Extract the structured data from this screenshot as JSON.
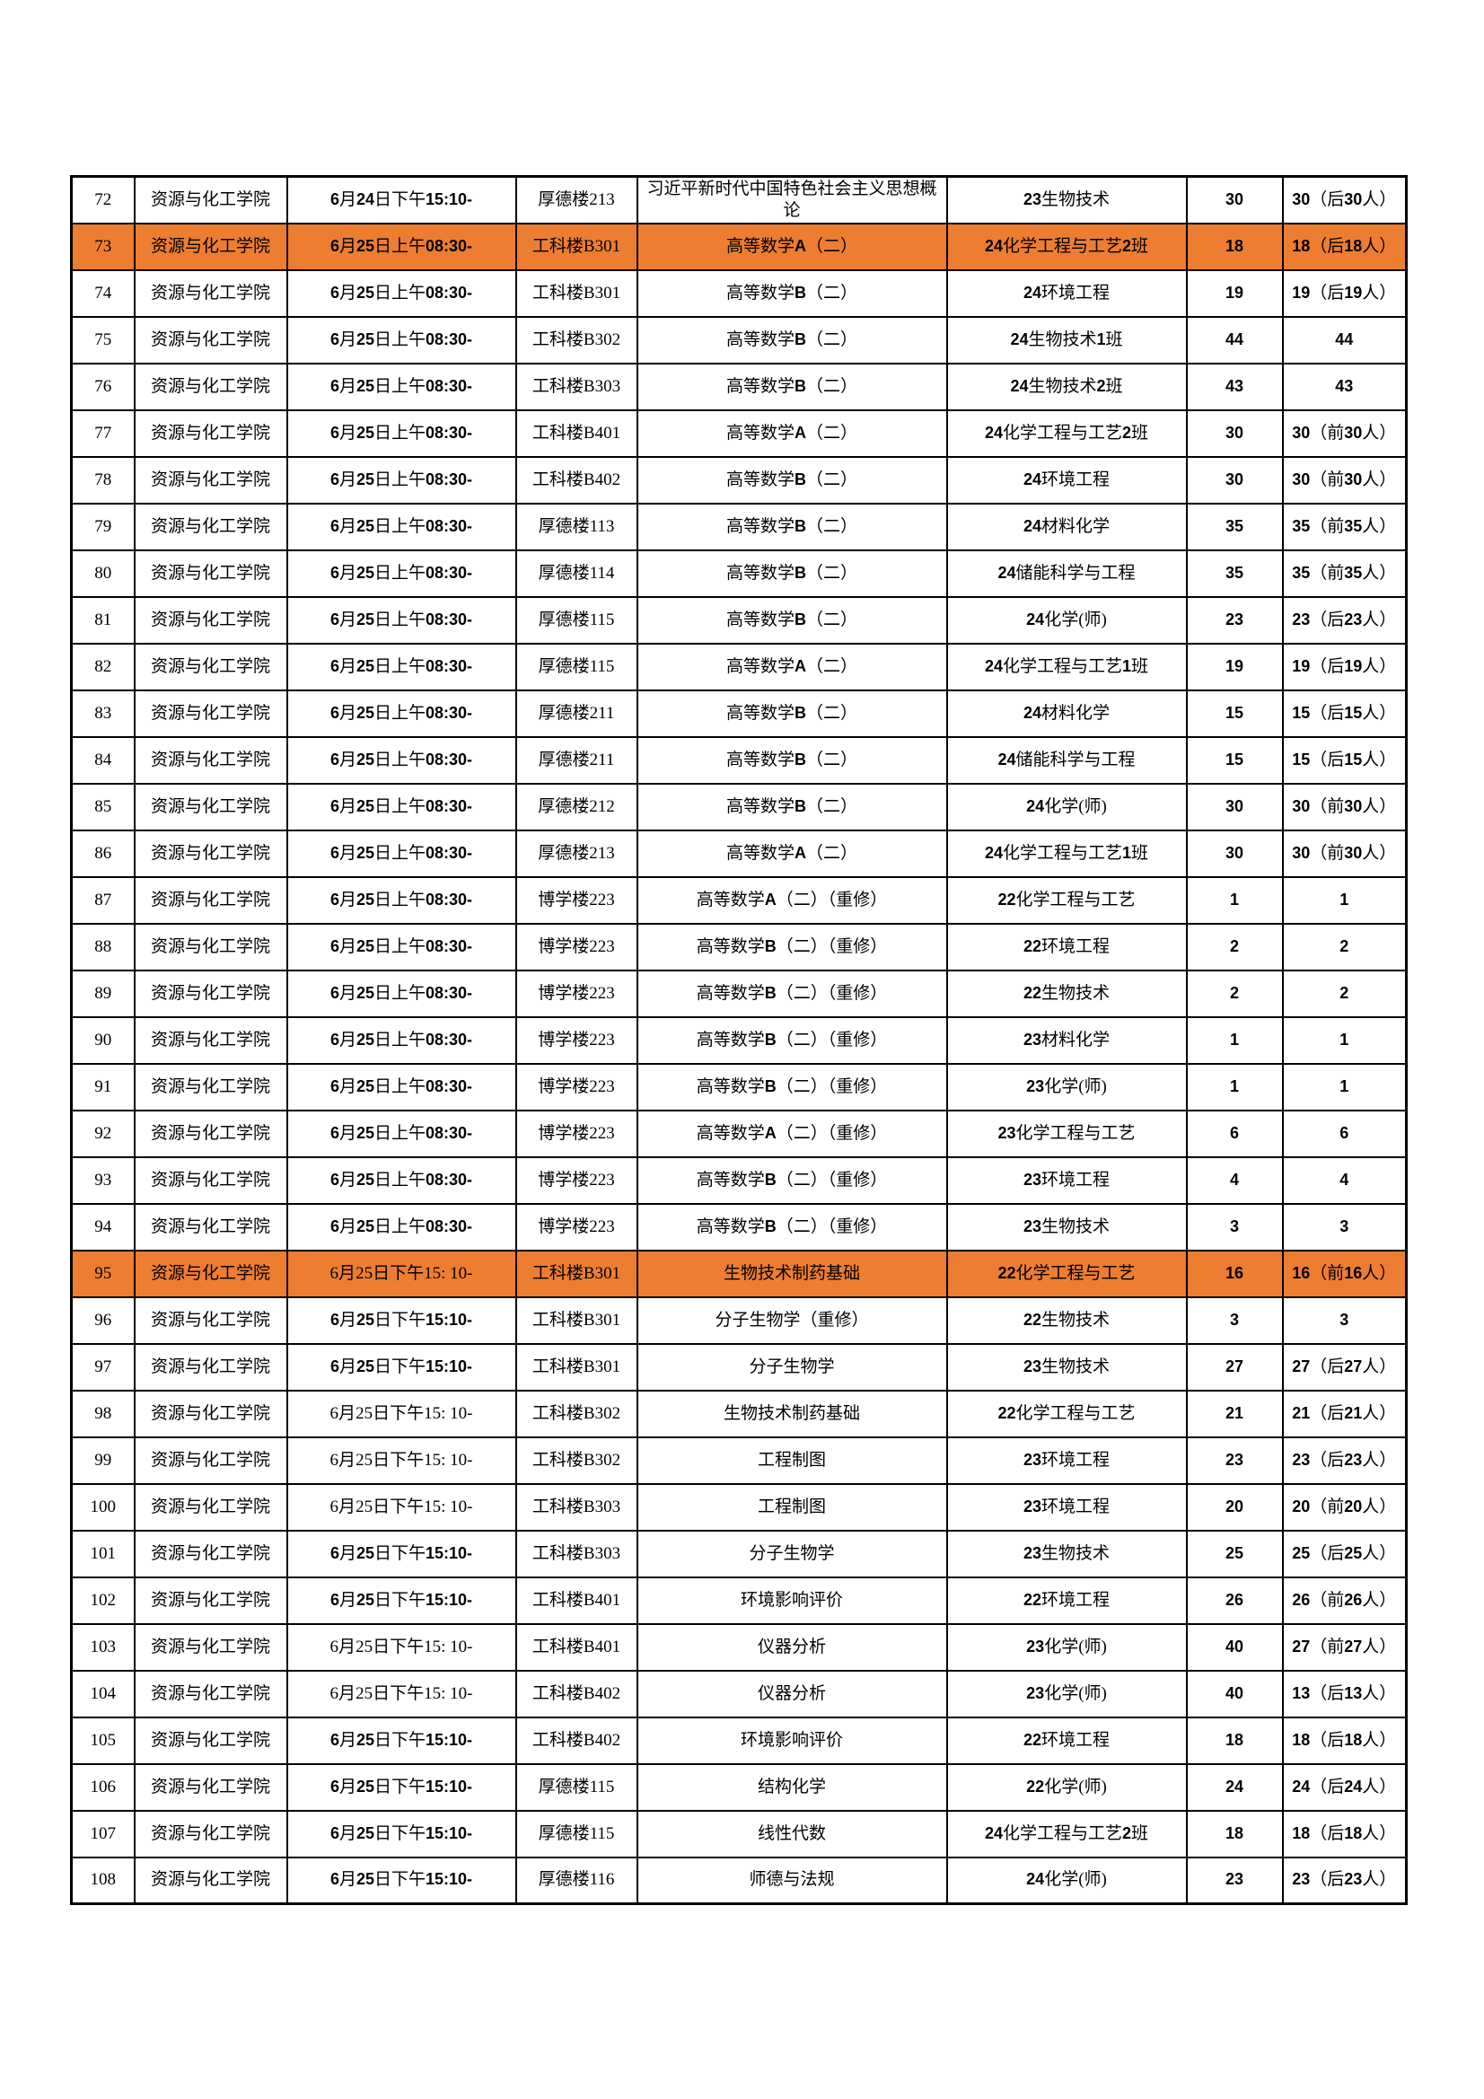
{
  "accent_orange": "#ED7D31",
  "table": {
    "rows": [
      {
        "no": "72",
        "college": "资源与化工学院",
        "datetime": "6月24日下午15:10-",
        "room": "厚德楼213",
        "course": "习近平新时代中国特色社会主义思想概论",
        "class": "23生物技术",
        "count": "30",
        "capacity": "30（后30人）",
        "highlight": false,
        "time_style": "bold"
      },
      {
        "no": "73",
        "college": "资源与化工学院",
        "datetime": "6月25日上午08:30-",
        "room": "工科楼B301",
        "course": "高等数学A（二）",
        "class": "24化学工程与工艺2班",
        "count": "18",
        "capacity": "18（后18人）",
        "highlight": true,
        "time_style": "bold"
      },
      {
        "no": "74",
        "college": "资源与化工学院",
        "datetime": "6月25日上午08:30-",
        "room": "工科楼B301",
        "course": "高等数学B（二）",
        "class": "24环境工程",
        "count": "19",
        "capacity": "19（后19人）",
        "highlight": false,
        "time_style": "bold"
      },
      {
        "no": "75",
        "college": "资源与化工学院",
        "datetime": "6月25日上午08:30-",
        "room": "工科楼B302",
        "course": "高等数学B（二）",
        "class": "24生物技术1班",
        "count": "44",
        "capacity": "44",
        "highlight": false,
        "time_style": "bold"
      },
      {
        "no": "76",
        "college": "资源与化工学院",
        "datetime": "6月25日上午08:30-",
        "room": "工科楼B303",
        "course": "高等数学B（二）",
        "class": "24生物技术2班",
        "count": "43",
        "capacity": "43",
        "highlight": false,
        "time_style": "bold"
      },
      {
        "no": "77",
        "college": "资源与化工学院",
        "datetime": "6月25日上午08:30-",
        "room": "工科楼B401",
        "course": "高等数学A（二）",
        "class": "24化学工程与工艺2班",
        "count": "30",
        "capacity": "30（前30人）",
        "highlight": false,
        "time_style": "bold"
      },
      {
        "no": "78",
        "college": "资源与化工学院",
        "datetime": "6月25日上午08:30-",
        "room": "工科楼B402",
        "course": "高等数学B（二）",
        "class": "24环境工程",
        "count": "30",
        "capacity": "30（前30人）",
        "highlight": false,
        "time_style": "bold"
      },
      {
        "no": "79",
        "college": "资源与化工学院",
        "datetime": "6月25日上午08:30-",
        "room": "厚德楼113",
        "course": "高等数学B（二）",
        "class": "24材料化学",
        "count": "35",
        "capacity": "35（前35人）",
        "highlight": false,
        "time_style": "bold"
      },
      {
        "no": "80",
        "college": "资源与化工学院",
        "datetime": "6月25日上午08:30-",
        "room": "厚德楼114",
        "course": "高等数学B（二）",
        "class": "24储能科学与工程",
        "count": "35",
        "capacity": "35（前35人）",
        "highlight": false,
        "time_style": "bold"
      },
      {
        "no": "81",
        "college": "资源与化工学院",
        "datetime": "6月25日上午08:30-",
        "room": "厚德楼115",
        "course": "高等数学B（二）",
        "class": "24化学(师)",
        "count": "23",
        "capacity": "23（后23人）",
        "highlight": false,
        "time_style": "bold"
      },
      {
        "no": "82",
        "college": "资源与化工学院",
        "datetime": "6月25日上午08:30-",
        "room": "厚德楼115",
        "course": "高等数学A（二）",
        "class": "24化学工程与工艺1班",
        "count": "19",
        "capacity": "19（后19人）",
        "highlight": false,
        "time_style": "bold"
      },
      {
        "no": "83",
        "college": "资源与化工学院",
        "datetime": "6月25日上午08:30-",
        "room": "厚德楼211",
        "course": "高等数学B（二）",
        "class": "24材料化学",
        "count": "15",
        "capacity": "15（后15人）",
        "highlight": false,
        "time_style": "bold"
      },
      {
        "no": "84",
        "college": "资源与化工学院",
        "datetime": "6月25日上午08:30-",
        "room": "厚德楼211",
        "course": "高等数学B（二）",
        "class": "24储能科学与工程",
        "count": "15",
        "capacity": "15（后15人）",
        "highlight": false,
        "time_style": "bold"
      },
      {
        "no": "85",
        "college": "资源与化工学院",
        "datetime": "6月25日上午08:30-",
        "room": "厚德楼212",
        "course": "高等数学B（二）",
        "class": "24化学(师)",
        "count": "30",
        "capacity": "30（前30人）",
        "highlight": false,
        "time_style": "bold"
      },
      {
        "no": "86",
        "college": "资源与化工学院",
        "datetime": "6月25日上午08:30-",
        "room": "厚德楼213",
        "course": "高等数学A（二）",
        "class": "24化学工程与工艺1班",
        "count": "30",
        "capacity": "30（前30人）",
        "highlight": false,
        "time_style": "bold"
      },
      {
        "no": "87",
        "college": "资源与化工学院",
        "datetime": "6月25日上午08:30-",
        "room": "博学楼223",
        "course": "高等数学A（二）（重修）",
        "class": "22化学工程与工艺",
        "count": "1",
        "capacity": "1",
        "highlight": false,
        "time_style": "bold"
      },
      {
        "no": "88",
        "college": "资源与化工学院",
        "datetime": "6月25日上午08:30-",
        "room": "博学楼223",
        "course": "高等数学B（二）（重修）",
        "class": "22环境工程",
        "count": "2",
        "capacity": "2",
        "highlight": false,
        "time_style": "bold"
      },
      {
        "no": "89",
        "college": "资源与化工学院",
        "datetime": "6月25日上午08:30-",
        "room": "博学楼223",
        "course": "高等数学B（二）（重修）",
        "class": "22生物技术",
        "count": "2",
        "capacity": "2",
        "highlight": false,
        "time_style": "bold"
      },
      {
        "no": "90",
        "college": "资源与化工学院",
        "datetime": "6月25日上午08:30-",
        "room": "博学楼223",
        "course": "高等数学B（二）（重修）",
        "class": "23材料化学",
        "count": "1",
        "capacity": "1",
        "highlight": false,
        "time_style": "bold"
      },
      {
        "no": "91",
        "college": "资源与化工学院",
        "datetime": "6月25日上午08:30-",
        "room": "博学楼223",
        "course": "高等数学B（二）（重修）",
        "class": "23化学(师)",
        "count": "1",
        "capacity": "1",
        "highlight": false,
        "time_style": "bold"
      },
      {
        "no": "92",
        "college": "资源与化工学院",
        "datetime": "6月25日上午08:30-",
        "room": "博学楼223",
        "course": "高等数学A（二）（重修）",
        "class": "23化学工程与工艺",
        "count": "6",
        "capacity": "6",
        "highlight": false,
        "time_style": "bold"
      },
      {
        "no": "93",
        "college": "资源与化工学院",
        "datetime": "6月25日上午08:30-",
        "room": "博学楼223",
        "course": "高等数学B（二）（重修）",
        "class": "23环境工程",
        "count": "4",
        "capacity": "4",
        "highlight": false,
        "time_style": "bold"
      },
      {
        "no": "94",
        "college": "资源与化工学院",
        "datetime": "6月25日上午08:30-",
        "room": "博学楼223",
        "course": "高等数学B（二）（重修）",
        "class": "23生物技术",
        "count": "3",
        "capacity": "3",
        "highlight": false,
        "time_style": "bold"
      },
      {
        "no": "95",
        "college": "资源与化工学院",
        "datetime": "6月25日下午15: 10-",
        "room": "工科楼B301",
        "course": "生物技术制药基础",
        "class": "22化学工程与工艺",
        "count": "16",
        "capacity": "16（前16人）",
        "highlight": true,
        "time_style": "plain"
      },
      {
        "no": "96",
        "college": "资源与化工学院",
        "datetime": "6月25日下午15:10-",
        "room": "工科楼B301",
        "course": "分子生物学（重修）",
        "class": "22生物技术",
        "count": "3",
        "capacity": "3",
        "highlight": false,
        "time_style": "bold"
      },
      {
        "no": "97",
        "college": "资源与化工学院",
        "datetime": "6月25日下午15:10-",
        "room": "工科楼B301",
        "course": "分子生物学",
        "class": "23生物技术",
        "count": "27",
        "capacity": "27（后27人）",
        "highlight": false,
        "time_style": "bold"
      },
      {
        "no": "98",
        "college": "资源与化工学院",
        "datetime": "6月25日下午15: 10-",
        "room": "工科楼B302",
        "course": "生物技术制药基础",
        "class": "22化学工程与工艺",
        "count": "21",
        "capacity": "21（后21人）",
        "highlight": false,
        "time_style": "plain"
      },
      {
        "no": "99",
        "college": "资源与化工学院",
        "datetime": "6月25日下午15: 10-",
        "room": "工科楼B302",
        "course": "工程制图",
        "class": "23环境工程",
        "count": "23",
        "capacity": "23（后23人）",
        "highlight": false,
        "time_style": "plain"
      },
      {
        "no": "100",
        "college": "资源与化工学院",
        "datetime": "6月25日下午15: 10-",
        "room": "工科楼B303",
        "course": "工程制图",
        "class": "23环境工程",
        "count": "20",
        "capacity": "20（前20人）",
        "highlight": false,
        "time_style": "plain"
      },
      {
        "no": "101",
        "college": "资源与化工学院",
        "datetime": "6月25日下午15:10-",
        "room": "工科楼B303",
        "course": "分子生物学",
        "class": "23生物技术",
        "count": "25",
        "capacity": "25（后25人）",
        "highlight": false,
        "time_style": "bold"
      },
      {
        "no": "102",
        "college": "资源与化工学院",
        "datetime": "6月25日下午15:10-",
        "room": "工科楼B401",
        "course": "环境影响评价",
        "class": "22环境工程",
        "count": "26",
        "capacity": "26（前26人）",
        "highlight": false,
        "time_style": "bold"
      },
      {
        "no": "103",
        "college": "资源与化工学院",
        "datetime": "6月25日下午15: 10-",
        "room": "工科楼B401",
        "course": "仪器分析",
        "class": "23化学(师)",
        "count": "40",
        "capacity": "27（前27人）",
        "highlight": false,
        "time_style": "plain"
      },
      {
        "no": "104",
        "college": "资源与化工学院",
        "datetime": "6月25日下午15: 10-",
        "room": "工科楼B402",
        "course": "仪器分析",
        "class": "23化学(师)",
        "count": "40",
        "capacity": "13（后13人）",
        "highlight": false,
        "time_style": "plain"
      },
      {
        "no": "105",
        "college": "资源与化工学院",
        "datetime": "6月25日下午15:10-",
        "room": "工科楼B402",
        "course": "环境影响评价",
        "class": "22环境工程",
        "count": "18",
        "capacity": "18（后18人）",
        "highlight": false,
        "time_style": "bold"
      },
      {
        "no": "106",
        "college": "资源与化工学院",
        "datetime": "6月25日下午15:10-",
        "room": "厚德楼115",
        "course": "结构化学",
        "class": "22化学(师)",
        "count": "24",
        "capacity": "24（后24人）",
        "highlight": false,
        "time_style": "bold"
      },
      {
        "no": "107",
        "college": "资源与化工学院",
        "datetime": "6月25日下午15:10-",
        "room": "厚德楼115",
        "course": "线性代数",
        "class": "24化学工程与工艺2班",
        "count": "18",
        "capacity": "18（后18人）",
        "highlight": false,
        "time_style": "bold"
      },
      {
        "no": "108",
        "college": "资源与化工学院",
        "datetime": "6月25日下午15:10-",
        "room": "厚德楼116",
        "course": "师德与法规",
        "class": "24化学(师)",
        "count": "23",
        "capacity": "23（后23人）",
        "highlight": false,
        "time_style": "bold"
      }
    ]
  }
}
